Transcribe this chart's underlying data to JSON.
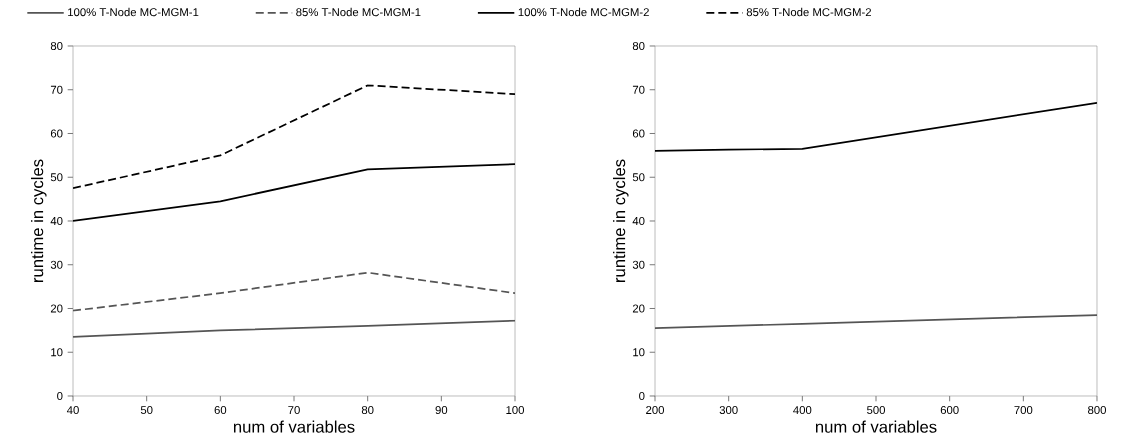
{
  "chart_data": [
    {
      "type": "line",
      "xlabel": "num of variables",
      "ylabel": "runtime in cycles",
      "xlim": [
        40,
        100
      ],
      "xticks": [
        40,
        50,
        60,
        70,
        80,
        90,
        100
      ],
      "ylim": [
        0,
        80
      ],
      "yticks": [
        0,
        10,
        20,
        30,
        40,
        50,
        60,
        70,
        80
      ],
      "legend": "top",
      "grid": false,
      "marker": "none",
      "series": [
        {
          "name": "100% T-Node MC-MGM-1",
          "color": "#555555",
          "line_style": "solid",
          "x": [
            40,
            60,
            80,
            100
          ],
          "values": [
            13.5,
            15,
            16,
            17.2
          ]
        },
        {
          "name": "85% T-Node MC-MGM-1",
          "color": "#555555",
          "line_style": "dashed",
          "x": [
            40,
            60,
            80,
            100
          ],
          "values": [
            19.5,
            23.5,
            28.2,
            23.5
          ]
        },
        {
          "name": "100% T-Node MC-MGM-2",
          "color": "#000000",
          "line_style": "solid",
          "x": [
            40,
            60,
            80,
            100
          ],
          "values": [
            40,
            44.5,
            51.8,
            53
          ]
        },
        {
          "name": "85% T-Node MC-MGM-2",
          "color": "#000000",
          "line_style": "dashed",
          "x": [
            40,
            60,
            80,
            100
          ],
          "values": [
            47.5,
            55,
            71,
            69
          ]
        }
      ]
    },
    {
      "type": "line",
      "xlabel": "num of variables",
      "ylabel": "runtime in cycles",
      "xlim": [
        200,
        800
      ],
      "xticks": [
        200,
        300,
        400,
        500,
        600,
        700,
        800
      ],
      "ylim": [
        0,
        80
      ],
      "yticks": [
        0,
        10,
        20,
        30,
        40,
        50,
        60,
        70,
        80
      ],
      "grid": false,
      "marker": "none",
      "series": [
        {
          "color": "#555555",
          "line_style": "solid",
          "x": [
            200,
            400,
            800
          ],
          "values": [
            15.5,
            16.5,
            18.5
          ]
        },
        {
          "color": "#000000",
          "line_style": "solid",
          "x": [
            200,
            300,
            400,
            800
          ],
          "values": [
            56,
            56.3,
            56.5,
            67
          ]
        }
      ]
    }
  ]
}
